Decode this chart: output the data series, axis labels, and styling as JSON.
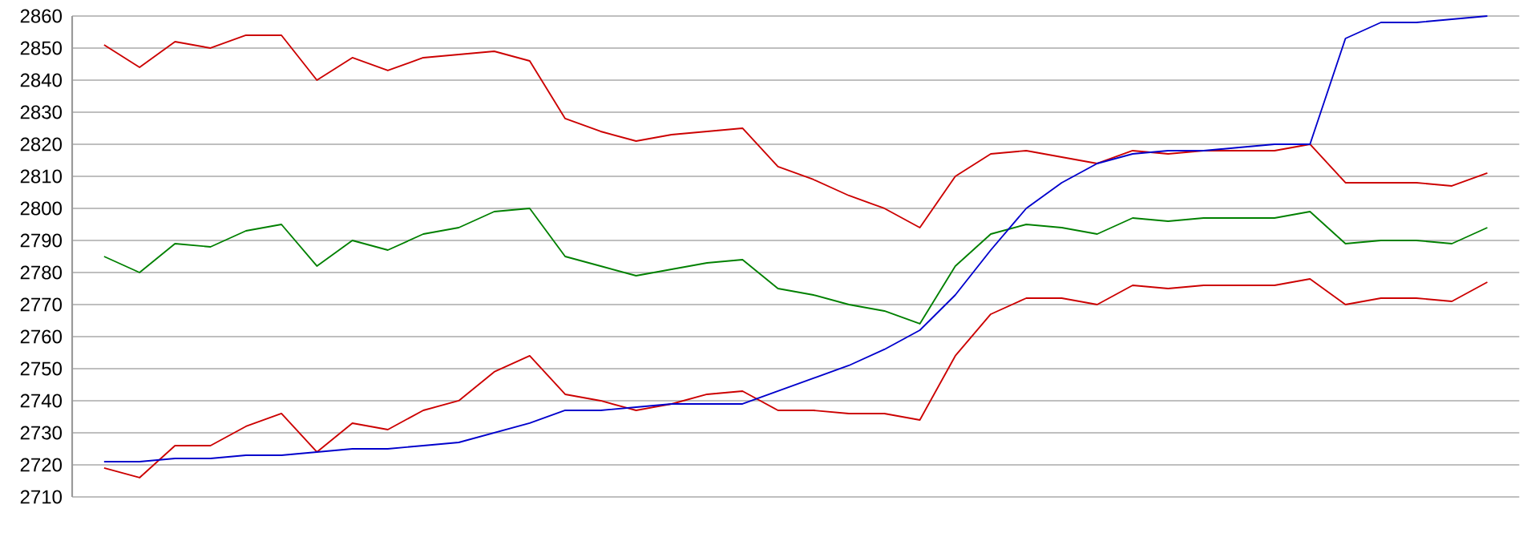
{
  "chart_data": {
    "type": "line",
    "categories": [
      null,
      null,
      null,
      null,
      null,
      null,
      null,
      null,
      null,
      null,
      null,
      null,
      null,
      null,
      null,
      null,
      null,
      null,
      null,
      null,
      null,
      null,
      null,
      null,
      null,
      null,
      null,
      null,
      null,
      null,
      null,
      null,
      null,
      null,
      null,
      null,
      null,
      null,
      null,
      null
    ],
    "series": [
      {
        "color": "#cc0000",
        "values": [
          2851,
          2844,
          2852,
          2850,
          2854,
          2854,
          2840,
          2847,
          2843,
          2847,
          2848,
          2849,
          2846,
          2828,
          2824,
          2821,
          2823,
          2824,
          2825,
          2813,
          2809,
          2804,
          2800,
          2794,
          2810,
          2817,
          2818,
          2816,
          2814,
          2818,
          2817,
          2818,
          2818,
          2818,
          2820,
          2808,
          2808,
          2808,
          2807,
          2811
        ]
      },
      {
        "color": "#008000",
        "values": [
          2785,
          2780,
          2789,
          2788,
          2793,
          2795,
          2782,
          2790,
          2787,
          2792,
          2794,
          2799,
          2800,
          2785,
          2782,
          2779,
          2781,
          2783,
          2784,
          2775,
          2773,
          2770,
          2768,
          2764,
          2782,
          2792,
          2795,
          2794,
          2792,
          2797,
          2796,
          2797,
          2797,
          2797,
          2799,
          2789,
          2790,
          2790,
          2789,
          2794
        ]
      },
      {
        "color": "#cc0000",
        "values": [
          2719,
          2716,
          2726,
          2726,
          2732,
          2736,
          2724,
          2733,
          2731,
          2737,
          2740,
          2749,
          2754,
          2742,
          2740,
          2737,
          2739,
          2742,
          2743,
          2737,
          2737,
          2736,
          2736,
          2734,
          2754,
          2767,
          2772,
          2772,
          2770,
          2776,
          2775,
          2776,
          2776,
          2776,
          2778,
          2770,
          2772,
          2772,
          2771,
          2777
        ]
      },
      {
        "color": "#0000cc",
        "values": [
          2721,
          2721,
          2722,
          2722,
          2723,
          2723,
          2724,
          2725,
          2725,
          2726,
          2727,
          2730,
          2733,
          2737,
          2737,
          2738,
          2739,
          2739,
          2739,
          2743,
          2747,
          2751,
          2756,
          2762,
          2773,
          2787,
          2800,
          2808,
          2814,
          2817,
          2818,
          2818,
          2819,
          2820,
          2820,
          2853,
          2858,
          2858,
          2859,
          2860
        ]
      }
    ],
    "ylim": [
      2710,
      2860
    ],
    "yticks": [
      2710,
      2720,
      2730,
      2740,
      2750,
      2760,
      2770,
      2780,
      2790,
      2800,
      2810,
      2820,
      2830,
      2840,
      2850,
      2860
    ],
    "grid": "y",
    "marker": "none",
    "line_style": "solid",
    "tick_labels": "y"
  }
}
